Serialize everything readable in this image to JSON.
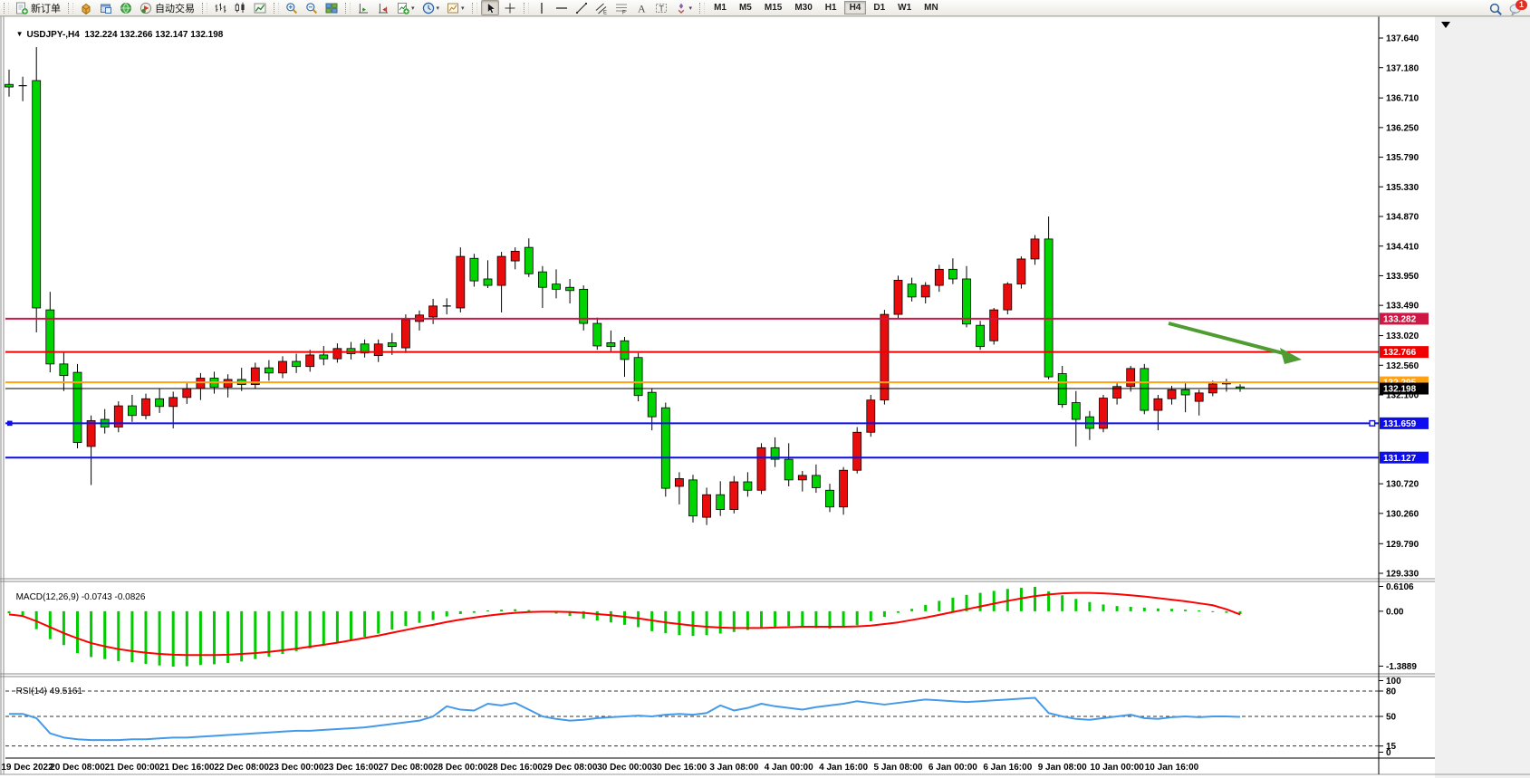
{
  "toolbar": {
    "groups": [
      {
        "items": [
          {
            "name": "new-order",
            "icon": "new-order-icon",
            "label": "新订单"
          }
        ]
      },
      {
        "items": [
          {
            "name": "styles",
            "icon": "cube-icon"
          },
          {
            "name": "market-window",
            "icon": "window-icon"
          },
          {
            "name": "news-feed",
            "icon": "globe-icon"
          },
          {
            "name": "auto-trading",
            "icon": "auto-trading-icon",
            "label": "自动交易"
          }
        ]
      },
      {
        "items": [
          {
            "name": "bar-chart-mode",
            "icon": "bar-chart-icon"
          },
          {
            "name": "candle-chart-mode",
            "icon": "candle-chart-icon"
          },
          {
            "name": "line-chart-mode",
            "icon": "line-chart-icon"
          }
        ]
      },
      {
        "items": [
          {
            "name": "zoom-in",
            "icon": "zoom-in-icon"
          },
          {
            "name": "zoom-out",
            "icon": "zoom-out-icon"
          },
          {
            "name": "tile-windows",
            "icon": "tile-windows-icon"
          }
        ]
      },
      {
        "items": [
          {
            "name": "auto-scroll",
            "icon": "auto-scroll-icon"
          },
          {
            "name": "chart-shift",
            "icon": "chart-shift-icon"
          },
          {
            "name": "indicators",
            "icon": "indicators-icon",
            "dropdown": true
          },
          {
            "name": "periods",
            "icon": "clock-icon",
            "dropdown": true
          },
          {
            "name": "templates",
            "icon": "template-icon",
            "dropdown": true
          }
        ]
      },
      {
        "items": [
          {
            "name": "cursor",
            "icon": "cursor-icon",
            "active": true
          },
          {
            "name": "crosshair",
            "icon": "crosshair-icon"
          }
        ]
      },
      {
        "items": [
          {
            "name": "vertical-line-tool",
            "icon": "vertical-line-icon"
          },
          {
            "name": "horizontal-line-tool",
            "icon": "horizontal-line-icon"
          },
          {
            "name": "trend-line-tool",
            "icon": "trend-line-icon"
          },
          {
            "name": "equidistant-channel-tool",
            "icon": "channel-icon"
          },
          {
            "name": "fibonacci-tool",
            "icon": "fibonacci-icon"
          },
          {
            "name": "text-tool",
            "icon": "text-icon"
          },
          {
            "name": "text-label-tool",
            "icon": "label-icon"
          },
          {
            "name": "arrows-tool",
            "icon": "arrows-icon",
            "dropdown": true
          }
        ]
      }
    ],
    "timeframes": [
      "M1",
      "M5",
      "M15",
      "M30",
      "H1",
      "H4",
      "D1",
      "W1",
      "MN"
    ],
    "active_timeframe": "H4",
    "right_items": [
      {
        "name": "search",
        "icon": "search-icon"
      },
      {
        "name": "chat",
        "icon": "chat-icon",
        "badge": "1"
      }
    ]
  },
  "chart": {
    "title": {
      "symbol_period": "USDJPY-,H4",
      "open": "132.224",
      "high": "132.266",
      "low": "132.147",
      "close": "132.198"
    },
    "price_axis_ticks": [
      "137.640",
      "137.180",
      "136.710",
      "136.250",
      "135.790",
      "135.330",
      "134.870",
      "134.410",
      "133.950",
      "133.490",
      "133.020",
      "132.560",
      "132.100",
      "130.720",
      "130.260",
      "129.790",
      "129.330"
    ],
    "time_axis_labels": [
      "19 Dec 2022",
      "20 Dec 08:00",
      "21 Dec 00:00",
      "21 Dec 16:00",
      "22 Dec 08:00",
      "23 Dec 00:00",
      "23 Dec 16:00",
      "27 Dec 08:00",
      "28 Dec 00:00",
      "28 Dec 16:00",
      "29 Dec 08:00",
      "30 Dec 00:00",
      "30 Dec 16:00",
      "3 Jan 08:00",
      "4 Jan 00:00",
      "4 Jan 16:00",
      "5 Jan 08:00",
      "6 Jan 00:00",
      "6 Jan 16:00",
      "9 Jan 08:00",
      "10 Jan 00:00",
      "10 Jan 16:00"
    ],
    "horizontal_lines": [
      {
        "name": "resistance-line-upper",
        "price": 133.282,
        "label": "133.282",
        "color": "#ce1745",
        "width": 2,
        "selected": false
      },
      {
        "name": "resistance-line-lower",
        "price": 132.766,
        "label": "132.766",
        "color": "#f20000",
        "width": 2,
        "selected": false
      },
      {
        "name": "pivot-line-orange",
        "price": 132.295,
        "label": "132.295",
        "color": "#ffa216",
        "width": 2,
        "selected": false
      },
      {
        "name": "current-price-line",
        "price": 132.198,
        "label": "132.198",
        "color": "#000000",
        "width": 1,
        "selected": false
      },
      {
        "name": "support-line-upper",
        "price": 131.659,
        "label": "131.659",
        "color": "#0d0df0",
        "width": 2,
        "selected": true
      },
      {
        "name": "support-line-lower",
        "price": 131.127,
        "label": "131.127",
        "color": "#0d0df0",
        "width": 2,
        "selected": false
      }
    ],
    "trend_arrow": {
      "name": "down-trend-arrow",
      "color": "#4f9d32"
    }
  },
  "chart_data": {
    "type": "candlestick",
    "symbol": "USDJPY-",
    "period": "H4",
    "title": "USDJPY-,H4 132.224 132.266 132.147 132.198",
    "up_color_convention": "red-up-green-down",
    "ylim": [
      129.33,
      137.64
    ],
    "x_labels_every_n_candles": 4,
    "x_first_label_index": 1,
    "candles_ohlc": [
      [
        136.92,
        137.15,
        136.73,
        136.88
      ],
      [
        136.9,
        137.04,
        136.66,
        136.89
      ],
      [
        136.98,
        137.5,
        133.07,
        133.45
      ],
      [
        133.42,
        133.7,
        132.45,
        132.58
      ],
      [
        132.58,
        132.77,
        132.16,
        132.4
      ],
      [
        132.45,
        132.58,
        131.27,
        131.36
      ],
      [
        131.3,
        131.78,
        130.7,
        131.7
      ],
      [
        131.72,
        131.88,
        131.5,
        131.6
      ],
      [
        131.6,
        132.0,
        131.52,
        131.93
      ],
      [
        131.93,
        132.1,
        131.68,
        131.78
      ],
      [
        131.78,
        132.12,
        131.72,
        132.04
      ],
      [
        132.04,
        132.2,
        131.82,
        131.92
      ],
      [
        131.92,
        132.15,
        131.58,
        132.06
      ],
      [
        132.06,
        132.28,
        131.96,
        132.2
      ],
      [
        132.2,
        132.44,
        132.02,
        132.36
      ],
      [
        132.36,
        132.46,
        132.12,
        132.22
      ],
      [
        132.22,
        132.42,
        132.06,
        132.34
      ],
      [
        132.34,
        132.52,
        132.16,
        132.26
      ],
      [
        132.26,
        132.6,
        132.2,
        132.52
      ],
      [
        132.52,
        132.64,
        132.32,
        132.44
      ],
      [
        132.44,
        132.7,
        132.36,
        132.62
      ],
      [
        132.62,
        132.74,
        132.44,
        132.54
      ],
      [
        132.54,
        132.8,
        132.46,
        132.72
      ],
      [
        132.72,
        132.86,
        132.56,
        132.66
      ],
      [
        132.66,
        132.9,
        132.6,
        132.82
      ],
      [
        132.82,
        132.92,
        132.65,
        132.74
      ],
      [
        132.89,
        132.96,
        132.68,
        132.75
      ],
      [
        132.71,
        132.96,
        132.61,
        132.89
      ],
      [
        132.91,
        133.06,
        132.72,
        132.85
      ],
      [
        132.83,
        133.35,
        132.75,
        133.27
      ],
      [
        133.24,
        133.41,
        133.1,
        133.34
      ],
      [
        133.31,
        133.59,
        133.2,
        133.48
      ],
      [
        133.48,
        133.6,
        133.35,
        133.46
      ],
      [
        133.45,
        134.39,
        133.38,
        134.25
      ],
      [
        134.22,
        134.29,
        133.78,
        133.87
      ],
      [
        133.9,
        134.19,
        133.76,
        133.8
      ],
      [
        133.8,
        134.32,
        133.38,
        134.25
      ],
      [
        134.18,
        134.39,
        134.05,
        134.33
      ],
      [
        134.39,
        134.53,
        133.93,
        133.98
      ],
      [
        134.01,
        134.1,
        133.45,
        133.77
      ],
      [
        133.82,
        134.05,
        133.6,
        133.74
      ],
      [
        133.77,
        133.9,
        133.52,
        133.72
      ],
      [
        133.74,
        133.8,
        133.1,
        133.21
      ],
      [
        133.21,
        133.3,
        132.8,
        132.86
      ],
      [
        132.91,
        133.1,
        132.78,
        132.85
      ],
      [
        132.94,
        133.0,
        132.38,
        132.65
      ],
      [
        132.68,
        132.75,
        132.0,
        132.09
      ],
      [
        132.14,
        132.2,
        131.55,
        131.76
      ],
      [
        131.9,
        131.98,
        130.52,
        130.65
      ],
      [
        130.68,
        130.9,
        130.4,
        130.8
      ],
      [
        130.78,
        130.86,
        130.12,
        130.22
      ],
      [
        130.2,
        130.66,
        130.08,
        130.55
      ],
      [
        130.55,
        130.76,
        130.22,
        130.32
      ],
      [
        130.32,
        130.84,
        130.26,
        130.75
      ],
      [
        130.75,
        130.9,
        130.52,
        130.62
      ],
      [
        130.62,
        131.35,
        130.56,
        131.28
      ],
      [
        131.28,
        131.44,
        130.98,
        131.1
      ],
      [
        131.1,
        131.35,
        130.68,
        130.78
      ],
      [
        130.78,
        130.92,
        130.6,
        130.85
      ],
      [
        130.85,
        131.02,
        130.58,
        130.66
      ],
      [
        130.62,
        130.72,
        130.28,
        130.36
      ],
      [
        130.36,
        130.98,
        130.24,
        130.93
      ],
      [
        130.93,
        131.6,
        130.88,
        131.52
      ],
      [
        131.52,
        132.1,
        131.45,
        132.02
      ],
      [
        132.02,
        133.42,
        131.95,
        133.35
      ],
      [
        133.35,
        133.95,
        133.28,
        133.88
      ],
      [
        133.82,
        133.92,
        133.55,
        133.62
      ],
      [
        133.62,
        133.85,
        133.52,
        133.8
      ],
      [
        133.8,
        134.12,
        133.7,
        134.05
      ],
      [
        134.05,
        134.22,
        133.82,
        133.9
      ],
      [
        133.9,
        134.1,
        133.15,
        133.2
      ],
      [
        133.18,
        133.25,
        132.8,
        132.85
      ],
      [
        132.94,
        133.45,
        132.88,
        133.42
      ],
      [
        133.42,
        133.85,
        133.35,
        133.82
      ],
      [
        133.82,
        134.25,
        133.75,
        134.21
      ],
      [
        134.21,
        134.58,
        134.12,
        134.52
      ],
      [
        134.52,
        134.87,
        132.34,
        132.38
      ],
      [
        132.43,
        132.55,
        131.9,
        131.95
      ],
      [
        131.98,
        132.16,
        131.3,
        131.72
      ],
      [
        131.76,
        131.85,
        131.4,
        131.58
      ],
      [
        131.58,
        132.1,
        131.52,
        132.05
      ],
      [
        132.05,
        132.28,
        131.95,
        132.23
      ],
      [
        132.23,
        132.55,
        132.15,
        132.51
      ],
      [
        132.51,
        132.58,
        131.8,
        131.86
      ],
      [
        131.86,
        132.1,
        131.55,
        132.04
      ],
      [
        132.04,
        132.24,
        131.95,
        132.18
      ],
      [
        132.18,
        132.28,
        131.83,
        132.1
      ],
      [
        132.0,
        132.18,
        131.78,
        132.13
      ],
      [
        132.13,
        132.32,
        132.08,
        132.27
      ],
      [
        132.27,
        132.35,
        132.15,
        132.3
      ],
      [
        132.224,
        132.266,
        132.147,
        132.198
      ]
    ],
    "indicators": [
      {
        "name": "MACD",
        "params": "12,26,9",
        "label": "MACD(12,26,9)",
        "values_label": "-0.0743 -0.0826",
        "axis_ticks": [
          "0.6106",
          "0.00",
          "-1.3889"
        ],
        "ylim": [
          -1.46,
          0.62
        ],
        "histogram": [
          -0.05,
          -0.1,
          -0.45,
          -0.7,
          -0.85,
          -1.05,
          -1.15,
          -1.2,
          -1.25,
          -1.28,
          -1.32,
          -1.36,
          -1.389,
          -1.38,
          -1.35,
          -1.33,
          -1.3,
          -1.26,
          -1.2,
          -1.14,
          -1.07,
          -1.0,
          -0.93,
          -0.86,
          -0.79,
          -0.72,
          -0.64,
          -0.56,
          -0.46,
          -0.37,
          -0.29,
          -0.22,
          -0.13,
          -0.07,
          -0.04,
          0.02,
          0.04,
          0.05,
          0.03,
          -0.02,
          -0.06,
          -0.12,
          -0.18,
          -0.23,
          -0.28,
          -0.34,
          -0.4,
          -0.5,
          -0.55,
          -0.6,
          -0.62,
          -0.6,
          -0.56,
          -0.52,
          -0.47,
          -0.42,
          -0.4,
          -0.37,
          -0.4,
          -0.42,
          -0.44,
          -0.41,
          -0.35,
          -0.25,
          -0.14,
          -0.04,
          0.06,
          0.16,
          0.26,
          0.34,
          0.41,
          0.46,
          0.51,
          0.56,
          0.59,
          0.61,
          0.5,
          0.4,
          0.31,
          0.23,
          0.17,
          0.13,
          0.11,
          0.09,
          0.07,
          0.06,
          0.04,
          0.02,
          0.0,
          -0.04,
          -0.074
        ],
        "signal": [
          -0.08,
          -0.12,
          -0.25,
          -0.4,
          -0.55,
          -0.68,
          -0.8,
          -0.88,
          -0.95,
          -1.0,
          -1.04,
          -1.07,
          -1.09,
          -1.1,
          -1.1,
          -1.1,
          -1.09,
          -1.07,
          -1.05,
          -1.02,
          -0.98,
          -0.94,
          -0.89,
          -0.84,
          -0.79,
          -0.73,
          -0.67,
          -0.61,
          -0.54,
          -0.47,
          -0.4,
          -0.34,
          -0.27,
          -0.21,
          -0.16,
          -0.11,
          -0.07,
          -0.04,
          -0.02,
          -0.01,
          -0.01,
          -0.02,
          -0.04,
          -0.07,
          -0.1,
          -0.14,
          -0.18,
          -0.23,
          -0.28,
          -0.32,
          -0.36,
          -0.39,
          -0.41,
          -0.42,
          -0.42,
          -0.42,
          -0.41,
          -0.4,
          -0.39,
          -0.39,
          -0.39,
          -0.39,
          -0.38,
          -0.36,
          -0.32,
          -0.28,
          -0.22,
          -0.16,
          -0.09,
          -0.02,
          0.05,
          0.12,
          0.19,
          0.26,
          0.32,
          0.38,
          0.42,
          0.45,
          0.46,
          0.46,
          0.45,
          0.43,
          0.4,
          0.37,
          0.33,
          0.29,
          0.25,
          0.2,
          0.15,
          0.05,
          -0.08
        ]
      },
      {
        "name": "RSI",
        "params": "14",
        "label": "RSI(14)",
        "value_label": "49.5161",
        "axis_ticks": [
          "100",
          "80",
          "50",
          "15",
          "0"
        ],
        "levels": [
          80,
          50,
          15
        ],
        "ylim": [
          0,
          100
        ],
        "values": [
          53,
          53,
          48,
          30,
          25,
          23,
          22,
          22,
          22,
          23,
          23,
          24,
          25,
          25,
          26,
          27,
          28,
          29,
          30,
          31,
          32,
          33,
          33,
          34,
          35,
          36,
          37,
          39,
          41,
          43,
          45,
          50,
          62,
          58,
          57,
          65,
          63,
          66,
          58,
          50,
          47,
          45,
          46,
          48,
          49,
          50,
          51,
          50,
          52,
          53,
          52,
          54,
          63,
          57,
          60,
          65,
          62,
          60,
          58,
          61,
          63,
          65,
          68,
          66,
          64,
          66,
          68,
          70,
          69,
          68,
          67,
          68,
          69,
          70,
          71,
          72,
          54,
          50,
          47,
          46,
          48,
          50,
          52,
          48,
          47,
          49,
          50,
          49,
          50,
          50,
          49.5
        ]
      }
    ]
  },
  "colors": {
    "candle_up": "#ea0c0c",
    "candle_down": "#00d400",
    "candle_outline": "#000000",
    "macd_histogram": "#00cc00",
    "macd_signal": "#ff0000",
    "rsi_line": "#459ae8",
    "arrow_green": "#4f9d32",
    "axis_text": "#000000",
    "pane_bg": "#ffffff",
    "gutter_bg": "#f0f0f0"
  }
}
